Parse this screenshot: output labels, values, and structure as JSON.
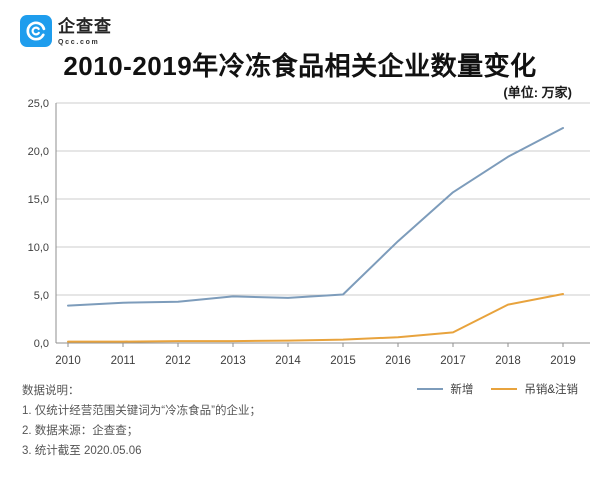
{
  "logo": {
    "brand": "企查查",
    "domain": "Qcc.com",
    "color": "#1f9ded"
  },
  "header": {
    "title": "2010-2019年冷冻食品相关企业数量变化",
    "unit": "(单位: 万家)"
  },
  "chart_data": {
    "type": "line",
    "title": "2010-2019年冷冻食品相关企业数量变化",
    "unit": "万家",
    "categories": [
      "2010",
      "2011",
      "2012",
      "2013",
      "2014",
      "2015",
      "2016",
      "2017",
      "2018",
      "2019"
    ],
    "series": [
      {
        "name": "新增",
        "color": "#7d9cbb",
        "values": [
          3.9,
          4.2,
          4.3,
          4.85,
          4.7,
          5.05,
          10.6,
          15.7,
          19.4,
          22.4
        ]
      },
      {
        "name": "吊销&注销",
        "color": "#e8a33d",
        "values": [
          0.15,
          0.15,
          0.2,
          0.2,
          0.25,
          0.35,
          0.6,
          1.1,
          4.0,
          5.1
        ]
      }
    ],
    "ylim": [
      0,
      25
    ],
    "y_tick_labels": [
      "0,0",
      "5,0",
      "10,0",
      "15,0",
      "20,0",
      "25,0"
    ],
    "xlabel": "",
    "ylabel": "",
    "grid": true,
    "legend_position": "bottom-right",
    "colors": {
      "gridline": "#cccccc",
      "axis": "#8f8f8f",
      "tick_label": "#3f3f3f"
    }
  },
  "notes": {
    "title": "数据说明：",
    "items": [
      "1. 仅统计经营范围关键词为“冷冻食品”的企业；",
      "2. 数据来源：企查查；",
      "3. 统计截至 2020.05.06"
    ]
  }
}
